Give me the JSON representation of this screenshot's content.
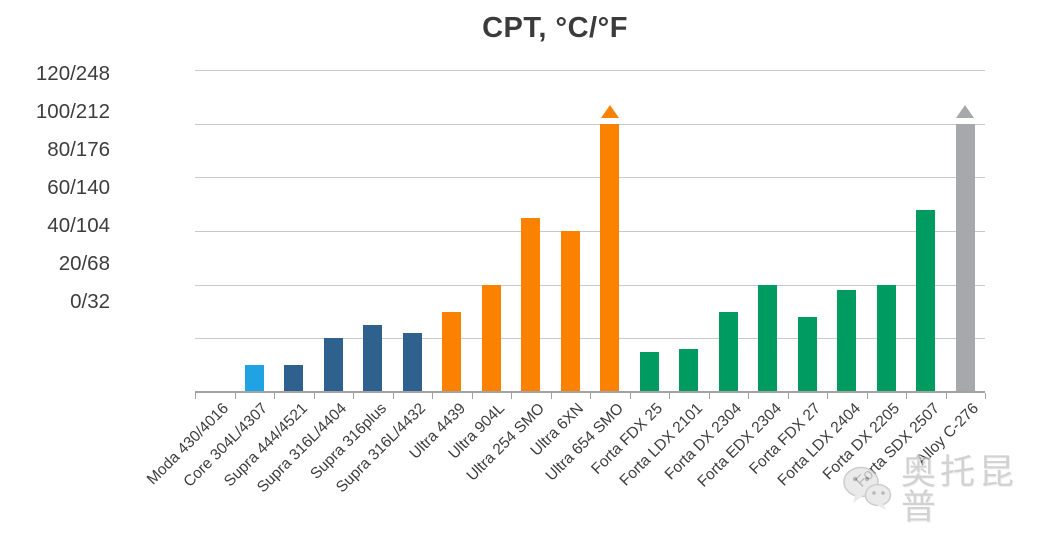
{
  "title": "CPT, °C/°F",
  "watermark": {
    "icon": "wechat-icon",
    "text": "奥托昆普"
  },
  "colors": {
    "light_blue": "#1fa3e3",
    "steel_blue": "#2f618e",
    "orange": "#fb8200",
    "green": "#009b61",
    "gray": "#a6a8ab",
    "gridline": "#c9c9c9",
    "axis": "#a2a2a2",
    "text": "#3d3d3d"
  },
  "chart_data": {
    "type": "bar",
    "title": "CPT, °C/°F",
    "xlabel": "",
    "ylabel": "CPT, °C/°F",
    "ylim": [
      0,
      130
    ],
    "grid": true,
    "legend": false,
    "ytick_values": [
      120,
      100,
      80,
      60,
      40,
      20,
      0
    ],
    "ytick_labels": [
      "120/248",
      "100/212",
      "80/176",
      "60/140",
      "40/104",
      "20/68",
      "0/32"
    ],
    "bars": [
      {
        "label": "Moda 430/4016",
        "value": 0,
        "color": "steel_blue",
        "arrow": false
      },
      {
        "label": "Core 304L/4307",
        "value": 10,
        "color": "light_blue",
        "arrow": false
      },
      {
        "label": "Supra 444/4521",
        "value": 10,
        "color": "steel_blue",
        "arrow": false
      },
      {
        "label": "Supra 316L/4404",
        "value": 20,
        "color": "steel_blue",
        "arrow": false
      },
      {
        "label": "Supra 316plus",
        "value": 25,
        "color": "steel_blue",
        "arrow": false
      },
      {
        "label": "Supra 316L/4432",
        "value": 22,
        "color": "steel_blue",
        "arrow": false
      },
      {
        "label": "Ultra 4439",
        "value": 30,
        "color": "orange",
        "arrow": false
      },
      {
        "label": "Ultra 904L",
        "value": 40,
        "color": "orange",
        "arrow": false
      },
      {
        "label": "Ultra 254 SMO",
        "value": 65,
        "color": "orange",
        "arrow": false
      },
      {
        "label": "Ultra 6XN",
        "value": 60,
        "color": "orange",
        "arrow": false
      },
      {
        "label": "Ultra 654 SMO",
        "value": 100,
        "color": "orange",
        "arrow": true
      },
      {
        "label": "Forta FDX 25",
        "value": 15,
        "color": "green",
        "arrow": false
      },
      {
        "label": "Forta LDX 2101",
        "value": 16,
        "color": "green",
        "arrow": false
      },
      {
        "label": "Forta DX 2304",
        "value": 30,
        "color": "green",
        "arrow": false
      },
      {
        "label": "Forta EDX 2304",
        "value": 40,
        "color": "green",
        "arrow": false
      },
      {
        "label": "Forta FDX 27",
        "value": 28,
        "color": "green",
        "arrow": false
      },
      {
        "label": "Forta LDX 2404",
        "value": 38,
        "color": "green",
        "arrow": false
      },
      {
        "label": "Forta DX 2205",
        "value": 40,
        "color": "green",
        "arrow": false
      },
      {
        "label": "Forta SDX 2507",
        "value": 68,
        "color": "green",
        "arrow": false
      },
      {
        "label": "Alloy C-276",
        "value": 100,
        "color": "gray",
        "arrow": true
      }
    ],
    "annotations": "arrows above Ultra 654 SMO and Alloy C-276 indicate CPT above 100°C/212°F"
  }
}
